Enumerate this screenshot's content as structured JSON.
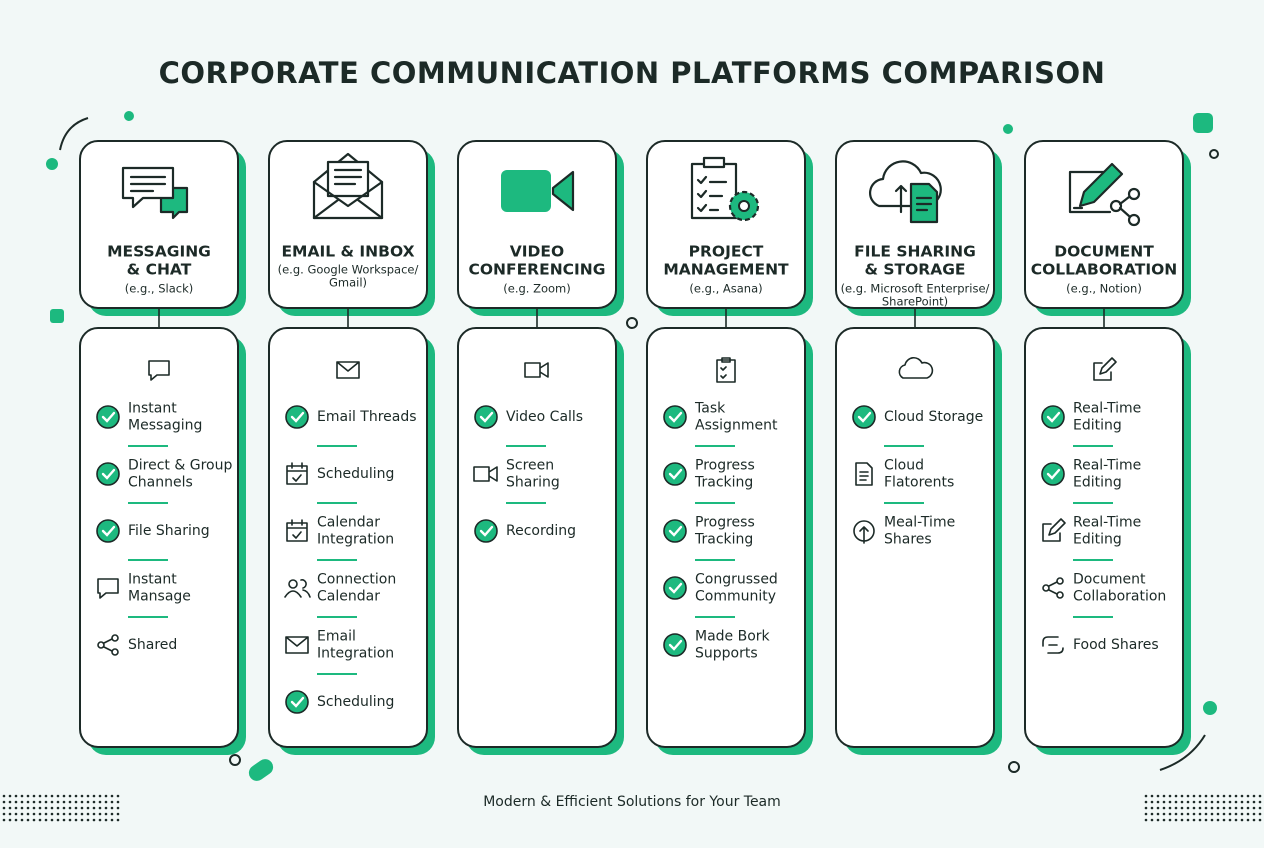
{
  "title": "CORPORATE COMMUNICATION PLATFORMS COMPARISON",
  "columns": [
    {
      "heading": [
        "MESSAGING",
        "& CHAT"
      ],
      "sub": [
        "(e.g., Slack)"
      ],
      "features": [
        [
          "Instant",
          "Messaging"
        ],
        [
          "Direct & Group",
          "Channels"
        ],
        [
          "File Sharing"
        ],
        [
          "Instant",
          "Mansage"
        ],
        [
          "Shared"
        ]
      ]
    },
    {
      "heading": [
        "EMAIL & INBOX"
      ],
      "sub": [
        "(e.g. Google Workspace/",
        "Gmail)"
      ],
      "features": [
        [
          "Email Threads"
        ],
        [
          "Scheduling"
        ],
        [
          "Calendar",
          "Integration"
        ],
        [
          "Connection",
          "Calendar"
        ],
        [
          "Email",
          "Integration"
        ],
        [
          "Scheduling"
        ]
      ]
    },
    {
      "heading": [
        "VIDEO",
        "CONFERENCING"
      ],
      "sub": [
        "(e.g. Zoom)"
      ],
      "features": [
        [
          "Video Calls"
        ],
        [
          "Screen",
          "Sharing"
        ],
        [
          "Recording"
        ]
      ]
    },
    {
      "heading": [
        "PROJECT",
        "MANAGEMENT"
      ],
      "sub": [
        "(e.g., Asana)"
      ],
      "features": [
        [
          "Task",
          "Assignment"
        ],
        [
          "Progress",
          "Tracking"
        ],
        [
          "Progress",
          "Tracking"
        ],
        [
          "Congrussed",
          "Community"
        ],
        [
          "Made Bork",
          "Supports"
        ]
      ]
    },
    {
      "heading": [
        "FILE SHARING",
        "& STORAGE"
      ],
      "sub": [
        "(e.g. Microsoft Enterprise/",
        "SharePoint)"
      ],
      "features": [
        [
          "Cloud Storage"
        ],
        [
          "Cloud",
          "Flatorents"
        ],
        [
          "Meal-Time",
          "Shares"
        ]
      ]
    },
    {
      "heading": [
        "DOCUMENT",
        "COLLABORATION"
      ],
      "sub": [
        "(e.g., Notion)"
      ],
      "features": [
        [
          "Real-Time",
          "Editing"
        ],
        [
          "Real-Time",
          "Editing"
        ],
        [
          "Real-Time",
          "Editing"
        ],
        [
          "Document",
          "Collaboration"
        ],
        [
          "Food Shares"
        ]
      ]
    }
  ],
  "footer": "Modern & Efficient Solutions for Your Team"
}
